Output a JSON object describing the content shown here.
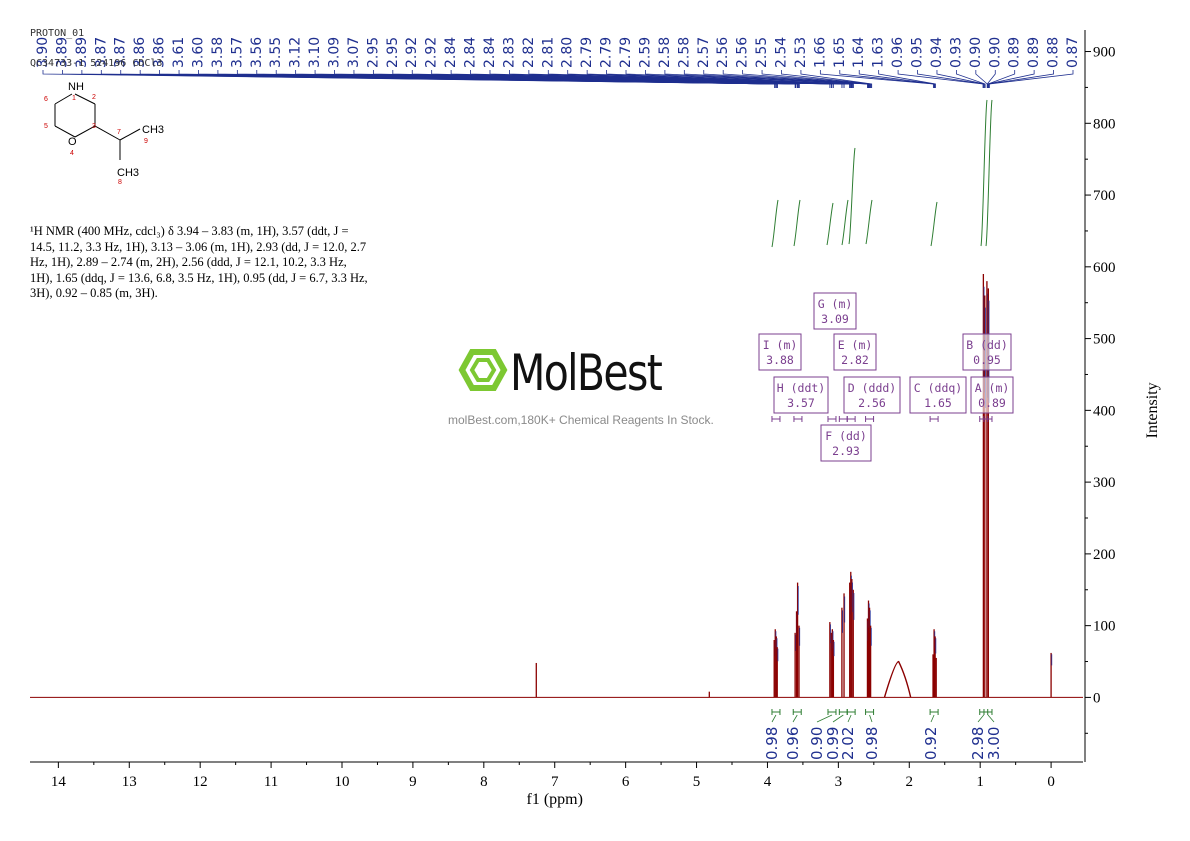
{
  "header": {
    "experiment": "PROTON_01",
    "sample": "QC34733-1 524196 CDCl3"
  },
  "structure": {
    "atoms": [
      "NH",
      "1",
      "2",
      "3",
      "4",
      "5",
      "6",
      "7",
      "8",
      "9",
      "O",
      "CH3",
      "CH3"
    ]
  },
  "description": {
    "text": "¹H NMR (400 MHz, cdcl₃) δ 3.94 – 3.83 (m, 1H), 3.57 (ddt, J = 14.5, 11.2, 3.3 Hz, 1H), 3.13 – 3.06 (m, 1H), 2.93 (dd, J = 12.0, 2.7 Hz, 1H), 2.89 – 2.74 (m, 2H), 2.56 (ddd, J = 12.1, 10.2, 3.3 Hz, 1H), 1.65 (ddq, J = 13.6, 6.8, 3.5 Hz, 1H), 0.95 (dd, J = 6.7, 3.3 Hz, 3H), 0.92 – 0.85 (m, 3H)."
  },
  "watermark": {
    "brand": "MolBest",
    "tagline": "molBest.com,180K+ Chemical Reagents In Stock."
  },
  "colors": {
    "spectrum": "#8b0000",
    "peak_labels": "#1f2f8f",
    "integral": "#2e7d32",
    "multiplet_box": "#7b3f8f",
    "logo": "#7dc832"
  },
  "chart_data": {
    "type": "line",
    "xlabel": "f1 (ppm)",
    "ylabel": "Intensity",
    "xlim": [
      14.4,
      -0.45
    ],
    "ylim": [
      -90,
      930
    ],
    "x_ticks": [
      14,
      13,
      12,
      11,
      10,
      9,
      8,
      7,
      6,
      5,
      4,
      3,
      2,
      1,
      0
    ],
    "y_ticks": [
      0,
      100,
      200,
      300,
      400,
      500,
      600,
      700,
      800,
      900
    ],
    "peak_list": [
      "3.90",
      "3.89",
      "3.89",
      "3.87",
      "3.87",
      "3.86",
      "3.86",
      "3.61",
      "3.60",
      "3.58",
      "3.57",
      "3.56",
      "3.55",
      "3.12",
      "3.10",
      "3.09",
      "3.07",
      "2.95",
      "2.95",
      "2.92",
      "2.92",
      "2.84",
      "2.84",
      "2.84",
      "2.83",
      "2.82",
      "2.81",
      "2.80",
      "2.79",
      "2.79",
      "2.79",
      "2.59",
      "2.58",
      "2.58",
      "2.57",
      "2.56",
      "2.56",
      "2.55",
      "2.54",
      "2.53",
      "1.66",
      "1.65",
      "1.64",
      "1.63",
      "0.96",
      "0.95",
      "0.94",
      "0.93",
      "0.90",
      "0.90",
      "0.89",
      "0.89",
      "0.88",
      "0.87"
    ],
    "peaks": [
      {
        "ppm": 7.26,
        "height": 48
      },
      {
        "ppm": 4.82,
        "height": 8
      },
      {
        "ppm": 3.905,
        "height": 80
      },
      {
        "ppm": 3.89,
        "height": 95
      },
      {
        "ppm": 3.875,
        "height": 85
      },
      {
        "ppm": 3.862,
        "height": 70
      },
      {
        "ppm": 3.61,
        "height": 90
      },
      {
        "ppm": 3.59,
        "height": 120
      },
      {
        "ppm": 3.575,
        "height": 160
      },
      {
        "ppm": 3.555,
        "height": 100
      },
      {
        "ppm": 3.12,
        "height": 105
      },
      {
        "ppm": 3.1,
        "height": 90
      },
      {
        "ppm": 3.085,
        "height": 95
      },
      {
        "ppm": 3.07,
        "height": 80
      },
      {
        "ppm": 2.95,
        "height": 125
      },
      {
        "ppm": 2.92,
        "height": 145
      },
      {
        "ppm": 2.84,
        "height": 160
      },
      {
        "ppm": 2.825,
        "height": 175
      },
      {
        "ppm": 2.81,
        "height": 165
      },
      {
        "ppm": 2.79,
        "height": 150
      },
      {
        "ppm": 2.59,
        "height": 110
      },
      {
        "ppm": 2.575,
        "height": 135
      },
      {
        "ppm": 2.56,
        "height": 125
      },
      {
        "ppm": 2.545,
        "height": 100
      },
      {
        "ppm": 2.15,
        "height": 50
      },
      {
        "ppm": 1.665,
        "height": 60
      },
      {
        "ppm": 1.65,
        "height": 95
      },
      {
        "ppm": 1.635,
        "height": 85
      },
      {
        "ppm": 1.62,
        "height": 55
      },
      {
        "ppm": 0.955,
        "height": 590
      },
      {
        "ppm": 0.935,
        "height": 560
      },
      {
        "ppm": 0.905,
        "height": 580
      },
      {
        "ppm": 0.885,
        "height": 570
      },
      {
        "ppm": -0.0,
        "height": 62
      }
    ],
    "multiplets": [
      {
        "label": "I (m)",
        "value": "3.88",
        "ppm": 3.88
      },
      {
        "label": "H (ddt)",
        "value": "3.57",
        "ppm": 3.57
      },
      {
        "label": "G (m)",
        "value": "3.09",
        "ppm": 3.09
      },
      {
        "label": "F (dd)",
        "value": "2.93",
        "ppm": 2.93
      },
      {
        "label": "E (m)",
        "value": "2.82",
        "ppm": 2.82
      },
      {
        "label": "D (ddd)",
        "value": "2.56",
        "ppm": 2.56
      },
      {
        "label": "C (ddq)",
        "value": "1.65",
        "ppm": 1.65
      },
      {
        "label": "B (dd)",
        "value": "0.95",
        "ppm": 0.95
      },
      {
        "label": "A (m)",
        "value": "0.89",
        "ppm": 0.89
      }
    ],
    "integrals": [
      {
        "value": "0.98",
        "ppm": 3.88
      },
      {
        "value": "0.96",
        "ppm": 3.58
      },
      {
        "value": "0.90",
        "ppm": 3.09
      },
      {
        "value": "0.99",
        "ppm": 2.93
      },
      {
        "value": "2.02",
        "ppm": 2.82
      },
      {
        "value": "0.98",
        "ppm": 2.56
      },
      {
        "value": "0.92",
        "ppm": 1.65
      },
      {
        "value": "2.98",
        "ppm": 0.95
      },
      {
        "value": "3.00",
        "ppm": 0.89
      }
    ]
  }
}
